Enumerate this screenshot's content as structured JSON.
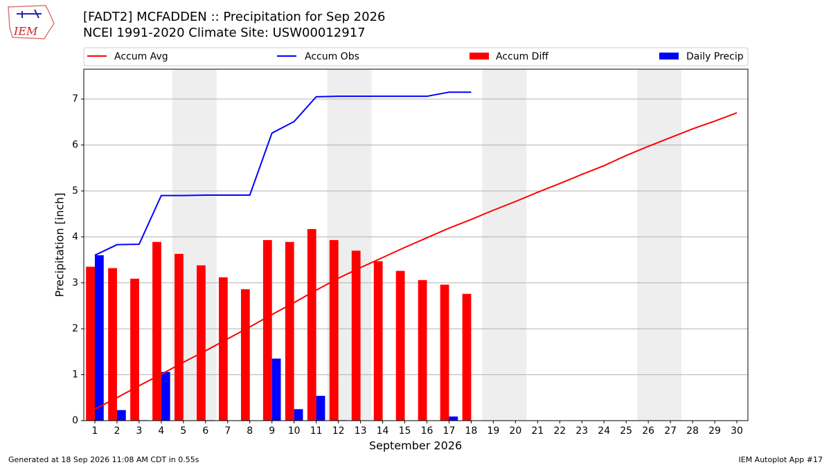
{
  "logo": "IEM",
  "chart_data": {
    "type": "combo",
    "title": "[FADT2] MCFADDEN :: Precipitation for Sep 2026",
    "subtitle": "NCEI 1991-2020 Climate Site: USW00012917",
    "x_label": "September 2026",
    "y_label": "Precipitation [inch]",
    "x": [
      1,
      2,
      3,
      4,
      5,
      6,
      7,
      8,
      9,
      10,
      11,
      12,
      13,
      14,
      15,
      16,
      17,
      18,
      19,
      20,
      21,
      22,
      23,
      24,
      25,
      26,
      27,
      28,
      29,
      30
    ],
    "xlim": [
      0.5,
      30.5
    ],
    "xticks": [
      1,
      2,
      3,
      4,
      5,
      6,
      7,
      8,
      9,
      10,
      11,
      12,
      13,
      14,
      15,
      16,
      17,
      18,
      19,
      20,
      21,
      22,
      23,
      24,
      25,
      26,
      27,
      28,
      29,
      30
    ],
    "ylim": [
      0,
      7.65
    ],
    "yticks": [
      0,
      1,
      2,
      3,
      4,
      5,
      6,
      7
    ],
    "grid": true,
    "legend": "top",
    "shaded_days": [
      [
        4.5,
        6.5
      ],
      [
        11.5,
        13.5
      ],
      [
        18.5,
        20.5
      ],
      [
        25.5,
        27.5
      ]
    ],
    "series": [
      {
        "name": "Accum Avg",
        "type": "line",
        "color": "#ff0000",
        "values": [
          0.25,
          0.5,
          0.76,
          1.01,
          1.27,
          1.52,
          1.78,
          2.04,
          2.31,
          2.57,
          2.84,
          3.1,
          3.33,
          3.55,
          3.77,
          3.98,
          4.19,
          4.38,
          4.58,
          4.77,
          4.97,
          5.16,
          5.36,
          5.55,
          5.77,
          5.97,
          6.16,
          6.35,
          6.52,
          6.7
        ]
      },
      {
        "name": "Accum Obs",
        "type": "line",
        "color": "#0000ff",
        "values": [
          3.6,
          3.83,
          3.84,
          4.9,
          4.9,
          4.91,
          4.91,
          4.91,
          6.26,
          6.51,
          7.05,
          7.06,
          7.06,
          7.06,
          7.06,
          7.06,
          7.15,
          7.15,
          null,
          null,
          null,
          null,
          null,
          null,
          null,
          null,
          null,
          null,
          null,
          null
        ]
      },
      {
        "name": "Accum Diff",
        "type": "bar",
        "offset": -0.2,
        "color": "#ff0000",
        "values": [
          3.35,
          3.32,
          3.09,
          3.89,
          3.63,
          3.38,
          3.12,
          2.86,
          3.93,
          3.89,
          4.17,
          3.93,
          3.7,
          3.47,
          3.26,
          3.06,
          2.96,
          2.76,
          null,
          null,
          null,
          null,
          null,
          null,
          null,
          null,
          null,
          null,
          null,
          null
        ]
      },
      {
        "name": "Daily Precip",
        "type": "bar",
        "offset": 0.2,
        "color": "#0000ff",
        "values": [
          3.6,
          0.23,
          0.01,
          1.06,
          0,
          0.01,
          0,
          0,
          1.35,
          0.25,
          0.54,
          0.01,
          0,
          0,
          0,
          0,
          0.09,
          0,
          null,
          null,
          null,
          null,
          null,
          null,
          null,
          null,
          null,
          null,
          null,
          null
        ]
      }
    ]
  },
  "footer": {
    "left": "Generated at 18 Sep 2026 11:08 AM CDT in 0.55s",
    "right": "IEM Autoplot App #17"
  }
}
